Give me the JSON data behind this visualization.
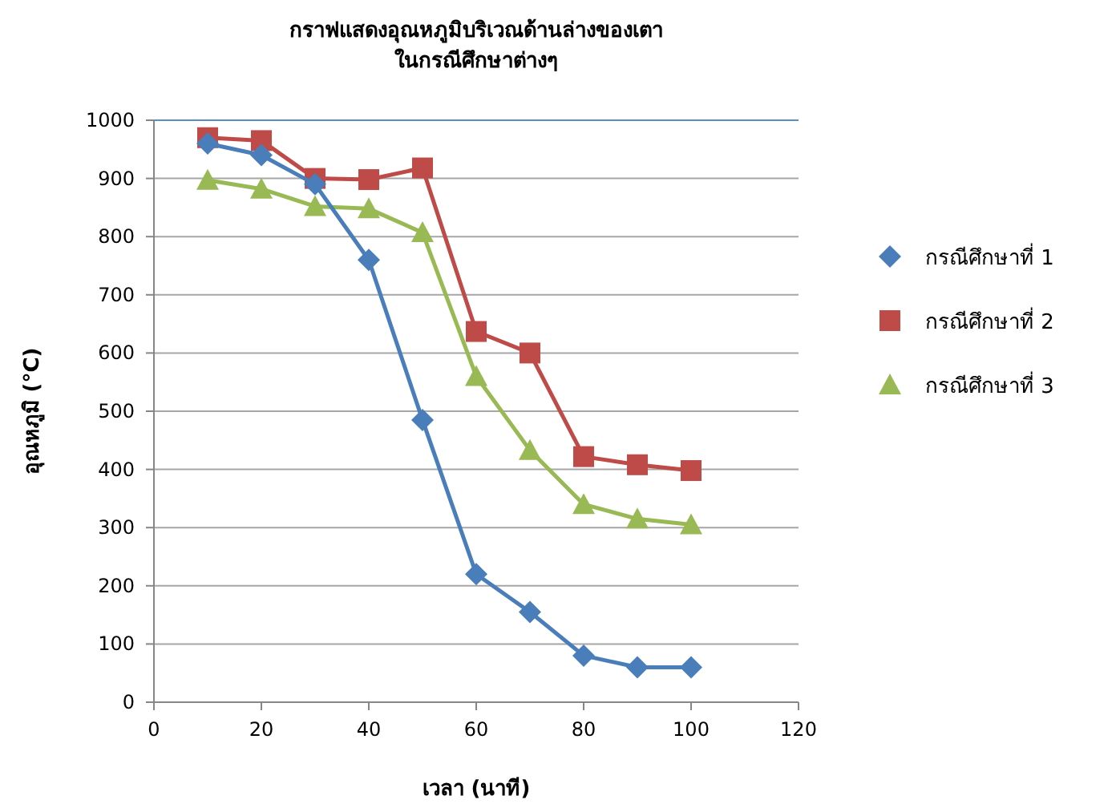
{
  "chart_data": {
    "type": "line",
    "title": "กราฟแสดงอุณหภูมิบริเวณด้านล่างของเตา",
    "subtitle": "ในกรณีศึกษาต่างๆ",
    "xlabel": "เวลา (นาที)",
    "ylabel": "อุณหภูมิ (°C)",
    "x": [
      10,
      20,
      30,
      40,
      50,
      60,
      70,
      80,
      90,
      100
    ],
    "series": [
      {
        "name": "กรณีศึกษาที่ 1",
        "color": "#4a7ebb",
        "marker": "diamond",
        "values": [
          960,
          940,
          890,
          760,
          485,
          220,
          155,
          80,
          60,
          60
        ]
      },
      {
        "name": "กรณีศึกษาที่ 2",
        "color": "#be4b48",
        "marker": "square",
        "values": [
          970,
          965,
          900,
          898,
          918,
          637,
          600,
          422,
          408,
          398
        ]
      },
      {
        "name": "กรณีศึกษาที่ 3",
        "color": "#98b954",
        "marker": "triangle",
        "values": [
          897,
          882,
          852,
          848,
          807,
          560,
          433,
          340,
          315,
          305
        ]
      }
    ],
    "xlim": [
      0,
      120
    ],
    "xticks": [
      0,
      20,
      40,
      60,
      80,
      100,
      120
    ],
    "ylim": [
      0,
      1000
    ],
    "yticks": [
      0,
      100,
      200,
      300,
      400,
      500,
      600,
      700,
      800,
      900,
      1000
    ],
    "grid": "y",
    "legend": "right",
    "line_style": "solid"
  }
}
